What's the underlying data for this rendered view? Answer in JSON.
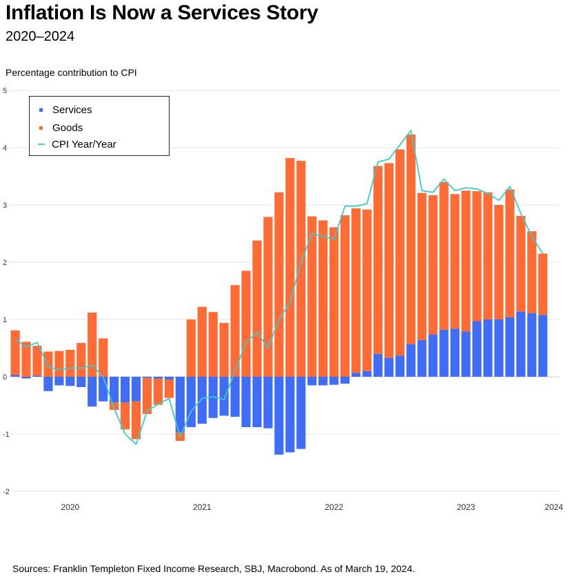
{
  "title": "Inflation Is Now a Services Story",
  "subtitle": "2020–2024",
  "source": "Sources: Franklin Templeton Fixed Income Research, SBJ, Macrobond. As of March 19, 2024.",
  "colors": {
    "services": "#3f6df5",
    "goods": "#ff6b35",
    "cpi": "#3ec9c9",
    "grid": "#e6e6e6"
  },
  "chart_data": {
    "type": "bar",
    "stacked": true,
    "ylabel": "Percentage contribution to CPI",
    "ylim": [
      -2,
      5
    ],
    "yticks": [
      -2,
      -1,
      0,
      1,
      2,
      3,
      4,
      5
    ],
    "xticks": [
      {
        "label": "2020",
        "index": 5
      },
      {
        "label": "2021",
        "index": 17
      },
      {
        "label": "2022",
        "index": 29
      },
      {
        "label": "2023",
        "index": 41
      },
      {
        "label": "2024",
        "index": 49
      }
    ],
    "grid": true,
    "legend_position": "top-left",
    "series": [
      {
        "name": "Services",
        "type": "bar",
        "values": [
          0.03,
          -0.03,
          0.02,
          -0.25,
          -0.15,
          -0.16,
          -0.18,
          -0.52,
          -0.43,
          -0.45,
          -0.45,
          -0.43,
          -0.02,
          -0.03,
          -0.05,
          -0.97,
          -0.88,
          -0.82,
          -0.72,
          -0.68,
          -0.7,
          -0.88,
          -0.88,
          -0.9,
          -1.36,
          -1.32,
          -1.26,
          -0.15,
          -0.15,
          -0.14,
          -0.12,
          0.07,
          0.1,
          0.4,
          0.33,
          0.37,
          0.57,
          0.64,
          0.74,
          0.82,
          0.84,
          0.79,
          0.97,
          1.0,
          1.0,
          1.04,
          1.14,
          1.11,
          1.08
        ]
      },
      {
        "name": "Goods",
        "type": "bar",
        "values": [
          0.78,
          0.61,
          0.52,
          0.44,
          0.45,
          0.47,
          0.59,
          1.12,
          0.67,
          -0.13,
          -0.47,
          -0.66,
          -0.63,
          -0.46,
          -0.32,
          -0.15,
          1.0,
          1.22,
          1.13,
          0.94,
          1.6,
          1.85,
          2.38,
          2.79,
          3.22,
          3.82,
          3.77,
          2.8,
          2.73,
          2.61,
          2.82,
          2.87,
          2.82,
          3.28,
          3.4,
          3.6,
          3.66,
          2.57,
          2.43,
          2.58,
          2.35,
          2.46,
          2.27,
          2.22,
          2.0,
          2.23,
          1.67,
          1.43,
          1.07
        ]
      },
      {
        "name": "CPI Year/Year",
        "type": "line",
        "values": [
          0.65,
          0.52,
          0.6,
          0.18,
          0.12,
          0.15,
          0.15,
          0.2,
          0.0,
          -0.55,
          -1.0,
          -1.18,
          -0.6,
          -0.48,
          -0.38,
          -1.05,
          -0.6,
          -0.38,
          -0.35,
          -0.4,
          0.1,
          0.6,
          0.78,
          0.5,
          1.0,
          1.3,
          2.0,
          2.5,
          2.45,
          2.4,
          2.98,
          2.98,
          3.02,
          3.75,
          3.8,
          4.05,
          4.3,
          3.25,
          3.22,
          3.45,
          3.25,
          3.3,
          3.28,
          3.2,
          3.08,
          3.32,
          2.85,
          2.45,
          2.15
        ]
      }
    ]
  }
}
